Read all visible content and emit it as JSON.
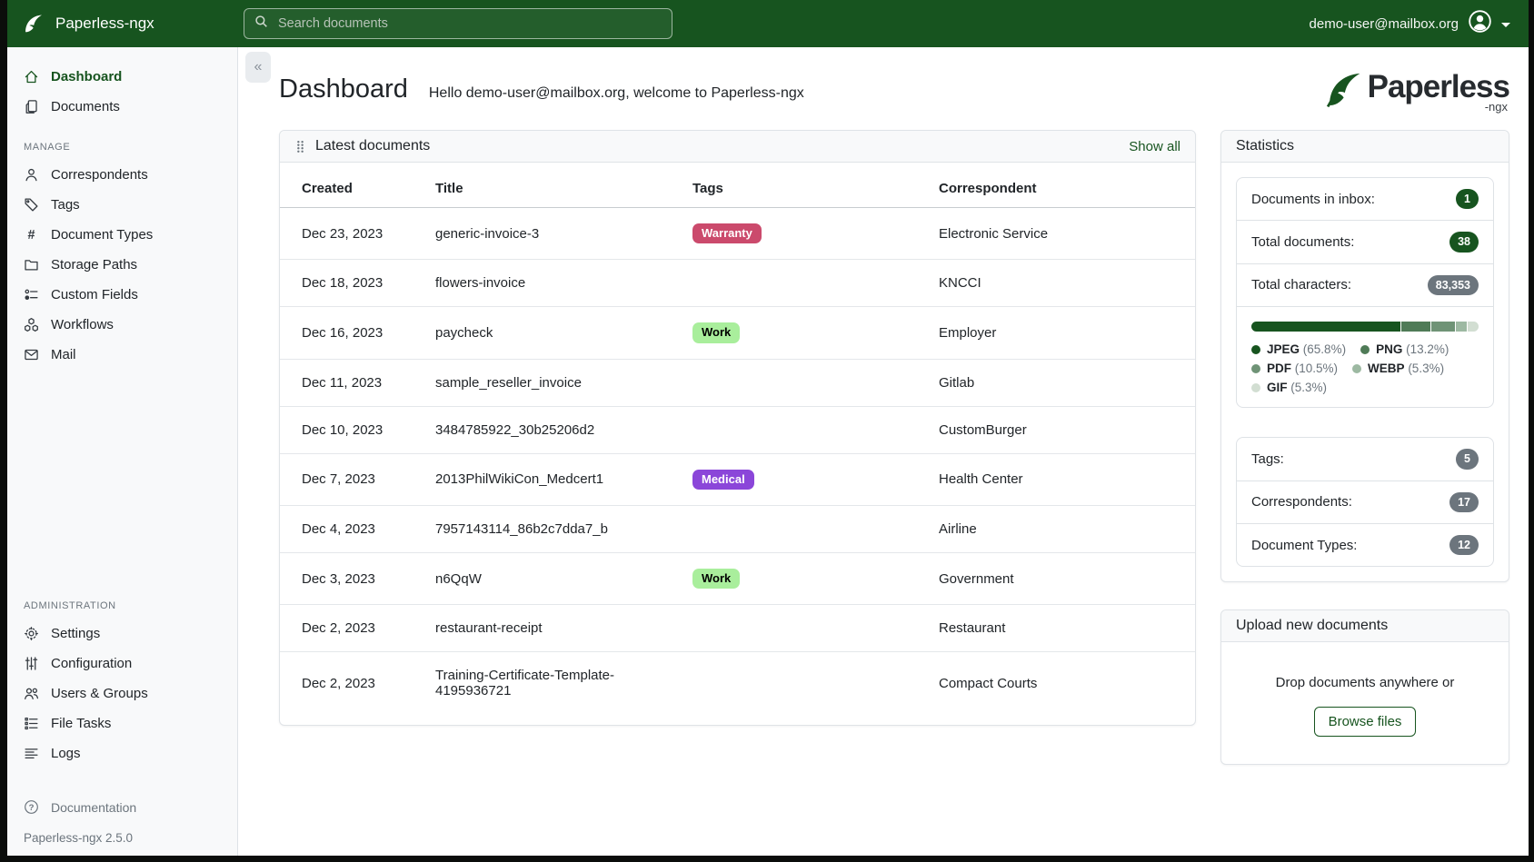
{
  "colors": {
    "primary_green": "#17541f",
    "badge_gray": "#6c757d",
    "navbar_bg": "#17541f",
    "sidebar_bg": "#f8f9fa"
  },
  "navbar": {
    "brand": "Paperless-ngx",
    "brand_icon": "leaf-icon",
    "search_placeholder": "Search documents",
    "user_email": "demo-user@mailbox.org"
  },
  "sidebar": {
    "primary_items": [
      {
        "label": "Dashboard",
        "icon": "house-icon",
        "active": true
      },
      {
        "label": "Documents",
        "icon": "files-icon",
        "active": false
      }
    ],
    "manage_label": "MANAGE",
    "manage_items": [
      {
        "label": "Correspondents",
        "icon": "person-icon"
      },
      {
        "label": "Tags",
        "icon": "tag-icon"
      },
      {
        "label": "Document Types",
        "icon": "hash-icon"
      },
      {
        "label": "Storage Paths",
        "icon": "folder-icon"
      },
      {
        "label": "Custom Fields",
        "icon": "custom-fields-icon"
      },
      {
        "label": "Workflows",
        "icon": "workflows-icon"
      },
      {
        "label": "Mail",
        "icon": "envelope-icon"
      }
    ],
    "admin_label": "ADMINISTRATION",
    "admin_items": [
      {
        "label": "Settings",
        "icon": "gear-icon"
      },
      {
        "label": "Configuration",
        "icon": "sliders-icon"
      },
      {
        "label": "Users & Groups",
        "icon": "people-icon"
      },
      {
        "label": "File Tasks",
        "icon": "list-task-icon"
      },
      {
        "label": "Logs",
        "icon": "text-lines-icon"
      }
    ],
    "documentation_label": "Documentation",
    "documentation_icon": "question-circle-icon",
    "version": "Paperless-ngx 2.5.0"
  },
  "header": {
    "title": "Dashboard",
    "subtitle": "Hello demo-user@mailbox.org, welcome to Paperless-ngx",
    "logo_main": "Paperless",
    "logo_sub": "-ngx"
  },
  "latest_documents": {
    "title": "Latest documents",
    "show_all": "Show all",
    "columns": [
      "Created",
      "Title",
      "Tags",
      "Correspondent"
    ],
    "rows": [
      {
        "created": "Dec 23, 2023",
        "title": "generic-invoice-3",
        "tag": "Warranty",
        "tag_bg": "#cb4a6c",
        "tag_color": "#ffffff",
        "correspondent": "Electronic Service"
      },
      {
        "created": "Dec 18, 2023",
        "title": "flowers-invoice",
        "tag": null,
        "correspondent": "KNCCI"
      },
      {
        "created": "Dec 16, 2023",
        "title": "paycheck",
        "tag": "Work",
        "tag_bg": "#a9ee9c",
        "tag_color": "#000000",
        "correspondent": "Employer"
      },
      {
        "created": "Dec 11, 2023",
        "title": "sample_reseller_invoice",
        "tag": null,
        "correspondent": "Gitlab"
      },
      {
        "created": "Dec 10, 2023",
        "title": "3484785922_30b25206d2",
        "tag": null,
        "correspondent": "CustomBurger"
      },
      {
        "created": "Dec 7, 2023",
        "title": "2013PhilWikiCon_Medcert1",
        "tag": "Medical",
        "tag_bg": "#8b46d9",
        "tag_color": "#ffffff",
        "correspondent": "Health Center"
      },
      {
        "created": "Dec 4, 2023",
        "title": "7957143114_86b2c7dda7_b",
        "tag": null,
        "correspondent": "Airline"
      },
      {
        "created": "Dec 3, 2023",
        "title": "n6QqW",
        "tag": "Work",
        "tag_bg": "#a9ee9c",
        "tag_color": "#000000",
        "correspondent": "Government"
      },
      {
        "created": "Dec 2, 2023",
        "title": "restaurant-receipt",
        "tag": null,
        "correspondent": "Restaurant"
      },
      {
        "created": "Dec 2, 2023",
        "title": "Training-Certificate-Template-4195936721",
        "tag": null,
        "correspondent": "Compact Courts"
      }
    ]
  },
  "statistics": {
    "title": "Statistics",
    "counts": [
      {
        "label": "Documents in inbox:",
        "value": "1",
        "badge": "green"
      },
      {
        "label": "Total documents:",
        "value": "38",
        "badge": "green"
      },
      {
        "label": "Total characters:",
        "value": "83,353",
        "badge": "gray"
      }
    ],
    "file_types": [
      {
        "name": "JPEG",
        "pct_label": "(65.8%)",
        "pct": 65.8,
        "color": "#17541f"
      },
      {
        "name": "PNG",
        "pct_label": "(13.2%)",
        "pct": 13.2,
        "color": "#4f7b57"
      },
      {
        "name": "PDF",
        "pct_label": "(10.5%)",
        "pct": 10.5,
        "color": "#6f9376"
      },
      {
        "name": "WEBP",
        "pct_label": "(5.3%)",
        "pct": 5.3,
        "color": "#9db9a2"
      },
      {
        "name": "GIF",
        "pct_label": "(5.3%)",
        "pct": 5.3,
        "color": "#d2ded2"
      }
    ],
    "meta_counts": [
      {
        "label": "Tags:",
        "value": "5",
        "badge": "gray"
      },
      {
        "label": "Correspondents:",
        "value": "17",
        "badge": "gray"
      },
      {
        "label": "Document Types:",
        "value": "12",
        "badge": "gray"
      }
    ]
  },
  "upload": {
    "title": "Upload new documents",
    "drop_text": "Drop documents anywhere or",
    "button_label": "Browse files"
  }
}
